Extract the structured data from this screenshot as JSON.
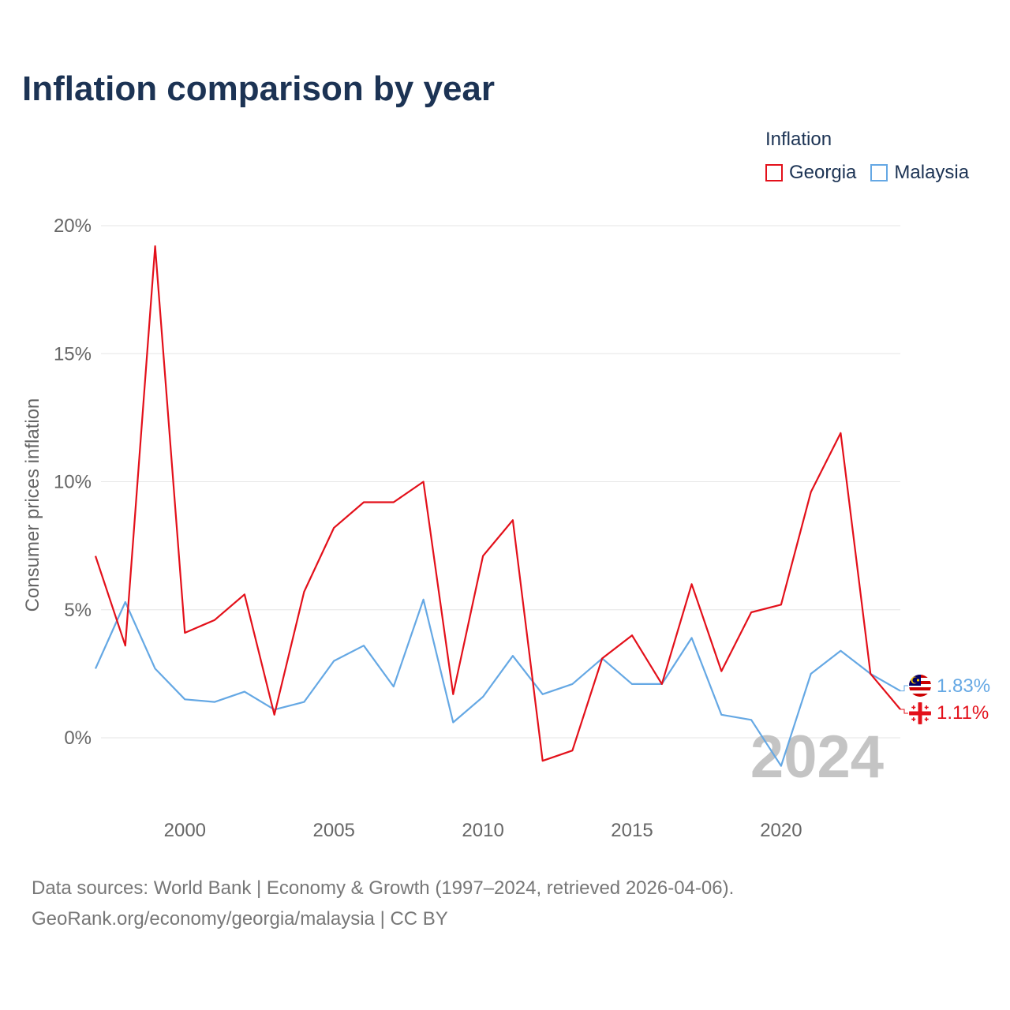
{
  "title": "Inflation comparison by year",
  "legend": {
    "title": "Inflation",
    "items": [
      {
        "label": "Georgia",
        "color": "#e3101a"
      },
      {
        "label": "Malaysia",
        "color": "#65a8e4"
      }
    ]
  },
  "watermark_year": "2024",
  "end_labels": {
    "georgia": "1.11%",
    "malaysia": "1.83%"
  },
  "footer": {
    "line1": "Data sources: World Bank | Economy & Growth (1997–2024, retrieved 2026-04-06).",
    "line2": "GeoRank.org/economy/georgia/malaysia | CC BY"
  },
  "chart_data": {
    "type": "line",
    "title": "Inflation comparison by year",
    "xlabel": "",
    "ylabel": "Consumer prices inflation",
    "xlim": [
      1997,
      2024
    ],
    "ylim": [
      -2,
      20
    ],
    "yticks": [
      0,
      5,
      10,
      15,
      20
    ],
    "ytick_labels": [
      "0%",
      "5%",
      "10%",
      "15%",
      "20%"
    ],
    "xticks": [
      2000,
      2005,
      2010,
      2015,
      2020
    ],
    "xtick_labels": [
      "2000",
      "2005",
      "2010",
      "2015",
      "2020"
    ],
    "x": [
      1997,
      1998,
      1999,
      2000,
      2001,
      2002,
      2003,
      2004,
      2005,
      2006,
      2007,
      2008,
      2009,
      2010,
      2011,
      2012,
      2013,
      2014,
      2015,
      2016,
      2017,
      2018,
      2019,
      2020,
      2021,
      2022,
      2023,
      2024
    ],
    "series": [
      {
        "name": "Georgia",
        "color": "#e3101a",
        "values": [
          7.1,
          3.6,
          19.2,
          4.1,
          4.6,
          5.6,
          0.9,
          5.7,
          8.2,
          9.2,
          9.2,
          10.0,
          1.7,
          7.1,
          8.5,
          -0.9,
          -0.5,
          3.1,
          4.0,
          2.1,
          6.0,
          2.6,
          4.9,
          5.2,
          9.6,
          11.9,
          2.5,
          1.11
        ]
      },
      {
        "name": "Malaysia",
        "color": "#65a8e4",
        "values": [
          2.7,
          5.3,
          2.7,
          1.5,
          1.4,
          1.8,
          1.1,
          1.4,
          3.0,
          3.6,
          2.0,
          5.4,
          0.6,
          1.6,
          3.2,
          1.7,
          2.1,
          3.1,
          2.1,
          2.1,
          3.9,
          0.9,
          0.7,
          -1.1,
          2.5,
          3.4,
          2.5,
          1.83
        ]
      }
    ],
    "grid": true,
    "legend_position": "top-right"
  }
}
